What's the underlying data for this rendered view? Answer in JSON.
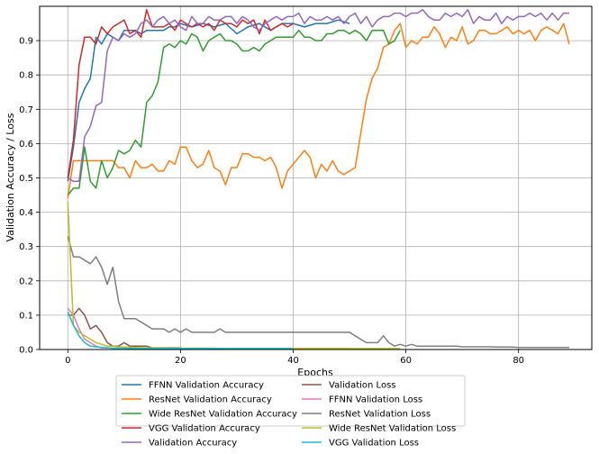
{
  "chart_data": {
    "type": "line",
    "xlabel": "Epochs",
    "ylabel": "Validation Accuracy / Loss",
    "xlim": [
      -5,
      93
    ],
    "ylim": [
      0,
      1.0
    ],
    "xticks": [
      0,
      20,
      40,
      60,
      80
    ],
    "yticks": [
      0.0,
      0.1,
      0.2,
      0.3,
      0.4,
      0.5,
      0.6,
      0.7,
      0.8,
      0.9
    ],
    "grid": true,
    "legend_position": "bottom-center",
    "legend_columns": 2,
    "series": [
      {
        "name": "FFNN Validation Accuracy",
        "color": "#1f77b4",
        "x": [
          0,
          1,
          2,
          3,
          4,
          5,
          6,
          7,
          8,
          9,
          10,
          11,
          12,
          13,
          14,
          15,
          16,
          17,
          18,
          19,
          20,
          22,
          24,
          26,
          28,
          30,
          32,
          34,
          36,
          38,
          40,
          42,
          44,
          46,
          48,
          50
        ],
        "values": [
          0.49,
          0.59,
          0.72,
          0.76,
          0.79,
          0.91,
          0.89,
          0.92,
          0.91,
          0.9,
          0.93,
          0.93,
          0.93,
          0.92,
          0.93,
          0.93,
          0.93,
          0.93,
          0.94,
          0.94,
          0.95,
          0.94,
          0.95,
          0.94,
          0.95,
          0.92,
          0.94,
          0.95,
          0.93,
          0.95,
          0.95,
          0.94,
          0.95,
          0.95,
          0.96,
          0.95
        ]
      },
      {
        "name": "ResNet Validation Accuracy",
        "color": "#ff7f0e",
        "x": [
          0,
          1,
          2,
          3,
          4,
          5,
          6,
          7,
          8,
          9,
          10,
          11,
          12,
          13,
          14,
          15,
          16,
          17,
          18,
          19,
          20,
          21,
          22,
          23,
          24,
          25,
          26,
          27,
          28,
          29,
          30,
          31,
          32,
          33,
          34,
          35,
          36,
          37,
          38,
          39,
          40,
          41,
          42,
          43,
          44,
          45,
          46,
          47,
          48,
          49,
          50,
          51,
          52,
          53,
          54,
          55,
          56,
          57,
          58,
          59,
          60,
          61,
          62,
          63,
          64,
          65,
          66,
          67,
          68,
          69,
          70,
          71,
          72,
          73,
          74,
          75,
          76,
          77,
          78,
          79,
          80,
          81,
          82,
          83,
          84,
          85,
          86,
          87,
          88,
          89
        ],
        "values": [
          0.44,
          0.55,
          0.55,
          0.55,
          0.55,
          0.55,
          0.55,
          0.55,
          0.55,
          0.53,
          0.53,
          0.5,
          0.55,
          0.53,
          0.53,
          0.54,
          0.52,
          0.52,
          0.55,
          0.54,
          0.59,
          0.59,
          0.55,
          0.53,
          0.54,
          0.58,
          0.53,
          0.52,
          0.48,
          0.53,
          0.53,
          0.57,
          0.57,
          0.56,
          0.56,
          0.55,
          0.56,
          0.53,
          0.47,
          0.52,
          0.54,
          0.56,
          0.58,
          0.56,
          0.5,
          0.54,
          0.52,
          0.55,
          0.52,
          0.51,
          0.52,
          0.53,
          0.63,
          0.73,
          0.79,
          0.82,
          0.88,
          0.89,
          0.93,
          0.95,
          0.88,
          0.9,
          0.89,
          0.91,
          0.91,
          0.94,
          0.92,
          0.88,
          0.91,
          0.9,
          0.94,
          0.89,
          0.9,
          0.93,
          0.93,
          0.92,
          0.92,
          0.93,
          0.94,
          0.92,
          0.93,
          0.92,
          0.93,
          0.9,
          0.93,
          0.94,
          0.93,
          0.92,
          0.95,
          0.89
        ]
      },
      {
        "name": "Wide ResNet Validation Accuracy",
        "color": "#2ca02c",
        "x": [
          0,
          1,
          2,
          3,
          4,
          5,
          6,
          7,
          8,
          9,
          10,
          11,
          12,
          13,
          14,
          15,
          16,
          17,
          18,
          19,
          20,
          21,
          22,
          23,
          24,
          25,
          26,
          27,
          28,
          29,
          30,
          31,
          32,
          33,
          34,
          35,
          36,
          37,
          38,
          39,
          40,
          41,
          42,
          43,
          44,
          45,
          46,
          47,
          48,
          49,
          50,
          51,
          52,
          53,
          54,
          55,
          56,
          57,
          58,
          59
        ],
        "values": [
          0.45,
          0.47,
          0.47,
          0.59,
          0.49,
          0.47,
          0.55,
          0.5,
          0.53,
          0.58,
          0.57,
          0.58,
          0.61,
          0.59,
          0.72,
          0.74,
          0.78,
          0.88,
          0.89,
          0.88,
          0.9,
          0.89,
          0.92,
          0.91,
          0.87,
          0.9,
          0.91,
          0.92,
          0.9,
          0.9,
          0.89,
          0.87,
          0.87,
          0.88,
          0.87,
          0.89,
          0.9,
          0.91,
          0.91,
          0.91,
          0.91,
          0.93,
          0.91,
          0.91,
          0.9,
          0.9,
          0.92,
          0.92,
          0.93,
          0.93,
          0.92,
          0.93,
          0.92,
          0.9,
          0.93,
          0.93,
          0.93,
          0.89,
          0.9,
          0.93
        ]
      },
      {
        "name": "VGG Validation Accuracy",
        "color": "#d62728",
        "x": [
          0,
          1,
          2,
          3,
          4,
          5,
          6,
          7,
          8,
          9,
          10,
          11,
          12,
          13,
          14,
          15,
          16,
          17,
          18,
          19,
          20,
          21,
          22,
          23,
          24,
          25,
          26,
          27,
          28,
          29,
          30,
          31,
          32,
          33,
          34,
          35,
          36,
          37,
          38,
          39,
          40
        ],
        "values": [
          0.5,
          0.61,
          0.83,
          0.91,
          0.91,
          0.89,
          0.94,
          0.92,
          0.94,
          0.95,
          0.96,
          0.92,
          0.93,
          0.91,
          0.99,
          0.94,
          0.94,
          0.94,
          0.95,
          0.93,
          0.96,
          0.95,
          0.94,
          0.95,
          0.94,
          0.95,
          0.93,
          0.96,
          0.95,
          0.95,
          0.94,
          0.96,
          0.95,
          0.96,
          0.92,
          0.96,
          0.93,
          0.94,
          0.95,
          0.94,
          0.95
        ]
      },
      {
        "name": "Validation Accuracy",
        "color": "#9467bd",
        "x": [
          0,
          1,
          2,
          3,
          4,
          5,
          6,
          7,
          8,
          9,
          10,
          11,
          12,
          13,
          14,
          15,
          16,
          17,
          18,
          19,
          20,
          21,
          22,
          23,
          24,
          25,
          26,
          27,
          28,
          29,
          30,
          31,
          32,
          33,
          34,
          35,
          36,
          37,
          38,
          39,
          40,
          41,
          42,
          43,
          44,
          45,
          46,
          47,
          48,
          49,
          50,
          51,
          52,
          53,
          54,
          55,
          56,
          57,
          58,
          59,
          60,
          61,
          62,
          63,
          64,
          65,
          66,
          67,
          68,
          69,
          70,
          71,
          72,
          73,
          74,
          75,
          76,
          77,
          78,
          79,
          80,
          81,
          82,
          83,
          84,
          85,
          86,
          87,
          88,
          89
        ],
        "values": [
          0.5,
          0.49,
          0.49,
          0.62,
          0.65,
          0.71,
          0.72,
          0.87,
          0.91,
          0.9,
          0.92,
          0.91,
          0.92,
          0.95,
          0.96,
          0.94,
          0.96,
          0.97,
          0.95,
          0.96,
          0.94,
          0.93,
          0.97,
          0.95,
          0.95,
          0.97,
          0.96,
          0.96,
          0.97,
          0.97,
          0.95,
          0.97,
          0.96,
          0.94,
          0.93,
          0.95,
          0.96,
          0.97,
          0.96,
          0.97,
          0.97,
          0.98,
          0.95,
          0.97,
          0.96,
          0.96,
          0.97,
          0.96,
          0.97,
          0.95,
          0.97,
          0.98,
          0.95,
          0.97,
          0.94,
          0.96,
          0.97,
          0.97,
          0.98,
          0.98,
          0.97,
          0.98,
          0.98,
          0.99,
          0.97,
          0.96,
          0.96,
          0.98,
          0.97,
          0.98,
          0.97,
          0.99,
          0.95,
          0.97,
          0.96,
          0.96,
          0.98,
          0.95,
          0.97,
          0.96,
          0.97,
          0.97,
          0.98,
          0.97,
          0.98,
          0.96,
          0.98,
          0.96,
          0.98,
          0.98
        ]
      },
      {
        "name": "Validation Loss",
        "color": "#8c564b",
        "x": [
          0,
          1,
          2,
          3,
          4,
          5,
          6,
          7,
          8,
          9,
          10,
          11,
          12,
          13,
          14,
          15,
          16,
          17,
          18,
          19,
          20
        ],
        "values": [
          0.1,
          0.1,
          0.12,
          0.1,
          0.06,
          0.07,
          0.05,
          0.02,
          0.01,
          0.01,
          0.02,
          0.01,
          0.01,
          0.01,
          0.01,
          0.005,
          0.005,
          0.005,
          0.005,
          0.005,
          0.005
        ]
      },
      {
        "name": "FFNN Validation Loss",
        "color": "#e377c2",
        "x": [
          0,
          1,
          2,
          3,
          4,
          5,
          6,
          7,
          8,
          9,
          10,
          12,
          14,
          16,
          18,
          20,
          25,
          30,
          35,
          40,
          45,
          50
        ],
        "values": [
          0.12,
          0.1,
          0.06,
          0.03,
          0.02,
          0.01,
          0.005,
          0.005,
          0.004,
          0.004,
          0.004,
          0.003,
          0.003,
          0.003,
          0.003,
          0.003,
          0.003,
          0.003,
          0.003,
          0.003,
          0.003,
          0.003
        ]
      },
      {
        "name": "ResNet Validation Loss",
        "color": "#7f7f7f",
        "x": [
          0,
          1,
          2,
          3,
          4,
          5,
          6,
          7,
          8,
          9,
          10,
          11,
          12,
          13,
          14,
          15,
          16,
          17,
          18,
          19,
          20,
          21,
          22,
          23,
          24,
          25,
          26,
          27,
          28,
          29,
          30,
          31,
          32,
          33,
          34,
          35,
          36,
          37,
          38,
          39,
          40,
          41,
          42,
          43,
          44,
          45,
          46,
          47,
          48,
          49,
          50,
          51,
          52,
          53,
          54,
          55,
          56,
          57,
          58,
          59,
          60,
          61,
          62,
          63,
          64,
          65,
          66,
          67,
          68,
          69,
          70,
          71,
          72,
          73,
          74,
          75,
          76,
          77,
          78,
          79,
          80,
          81,
          82,
          83,
          84,
          85,
          86,
          87,
          88,
          89
        ],
        "values": [
          0.33,
          0.27,
          0.27,
          0.26,
          0.25,
          0.27,
          0.24,
          0.19,
          0.24,
          0.14,
          0.09,
          0.09,
          0.09,
          0.08,
          0.07,
          0.06,
          0.06,
          0.06,
          0.05,
          0.06,
          0.05,
          0.06,
          0.05,
          0.05,
          0.05,
          0.05,
          0.05,
          0.06,
          0.05,
          0.05,
          0.05,
          0.05,
          0.05,
          0.05,
          0.05,
          0.05,
          0.05,
          0.05,
          0.05,
          0.05,
          0.05,
          0.05,
          0.05,
          0.05,
          0.05,
          0.05,
          0.05,
          0.05,
          0.05,
          0.05,
          0.05,
          0.04,
          0.03,
          0.02,
          0.02,
          0.02,
          0.04,
          0.02,
          0.01,
          0.015,
          0.01,
          0.015,
          0.01,
          0.01,
          0.01,
          0.01,
          0.01,
          0.01,
          0.01,
          0.01,
          0.008,
          0.008,
          0.008,
          0.008,
          0.008,
          0.008,
          0.007,
          0.007,
          0.007,
          0.007,
          0.006,
          0.006,
          0.006,
          0.006,
          0.006,
          0.006,
          0.006,
          0.006,
          0.006,
          0.006
        ]
      },
      {
        "name": "Wide ResNet Validation Loss",
        "color": "#bcbd22",
        "x": [
          0,
          1,
          2,
          3,
          4,
          5,
          6,
          7,
          8,
          9,
          10,
          12,
          14,
          16,
          18,
          20,
          25,
          30,
          35,
          40,
          45,
          50,
          55,
          59
        ],
        "values": [
          0.43,
          0.07,
          0.05,
          0.04,
          0.03,
          0.02,
          0.015,
          0.01,
          0.01,
          0.008,
          0.007,
          0.006,
          0.005,
          0.005,
          0.004,
          0.004,
          0.004,
          0.003,
          0.003,
          0.003,
          0.003,
          0.003,
          0.003,
          0.003
        ]
      },
      {
        "name": "VGG Validation Loss",
        "color": "#17becf",
        "x": [
          0,
          1,
          2,
          3,
          4,
          5,
          6,
          7,
          8,
          9,
          10,
          12,
          14,
          16,
          18,
          20,
          25,
          30,
          35,
          40
        ],
        "values": [
          0.11,
          0.07,
          0.04,
          0.02,
          0.01,
          0.008,
          0.006,
          0.005,
          0.004,
          0.004,
          0.004,
          0.003,
          0.003,
          0.003,
          0.003,
          0.003,
          0.003,
          0.003,
          0.003,
          0.003
        ]
      }
    ]
  }
}
